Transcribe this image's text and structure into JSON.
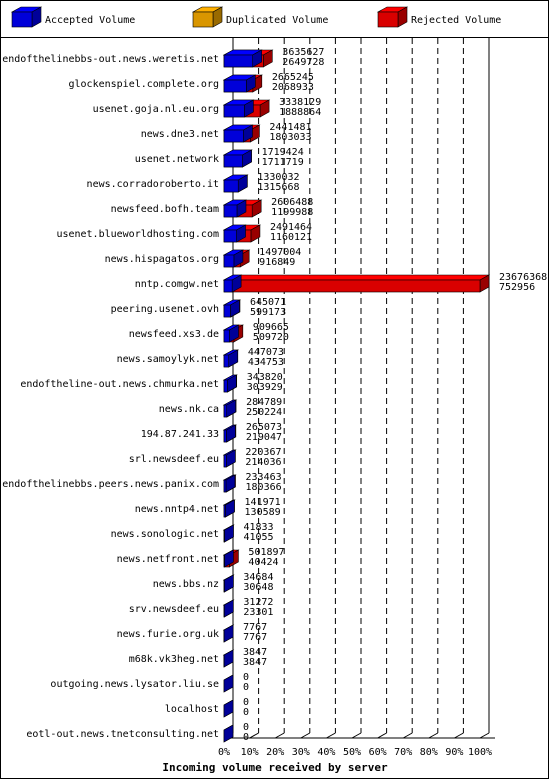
{
  "chart_data": {
    "type": "bar3d",
    "legend": [
      {
        "name": "Accepted Volume",
        "color": "#0000ff"
      },
      {
        "name": "Duplicated Volume",
        "color": "#ffb000"
      },
      {
        "name": "Rejected Volume",
        "color": "#ff0000"
      }
    ],
    "x_label": "Incoming volume received by server",
    "categories": [
      "endofthelinebbs-out.news.weretis.net",
      "glockenspiel.complete.org",
      "usenet.goja.nl.eu.org",
      "news.dne3.net",
      "usenet.network",
      "news.corradoroberto.it",
      "newsfeed.bofh.team",
      "usenet.blueworldhosting.com",
      "news.hispagatos.org",
      "nntp.comgw.net",
      "peering.usenet.ovh",
      "newsfeed.xs3.de",
      "news.samoylyk.net",
      "endoftheline-out.news.chmurka.net",
      "news.nk.ca",
      "194.87.241.33",
      "srl.newsdeef.eu",
      "endofthelinebbs.peers.news.panix.com",
      "news.nntp4.net",
      "news.sonologic.net",
      "news.netfront.net",
      "news.bbs.nz",
      "srv.newsdeef.eu",
      "news.furie.org.uk",
      "m68k.vk3heg.net",
      "outgoing.news.lysator.liu.se",
      "localhost",
      "eotl-out.news.tnetconsulting.net"
    ],
    "totals": [
      3635627,
      2665245,
      3338129,
      2441481,
      1719424,
      1330032,
      2606488,
      2491464,
      1497004,
      23676368,
      645071,
      909665,
      447073,
      343820,
      284789,
      265073,
      220367,
      233463,
      141971,
      41833,
      501897,
      34684,
      31272,
      7767,
      3847,
      0,
      0,
      0
    ],
    "accepted": [
      2649728,
      2068933,
      1888864,
      1803033,
      1711719,
      1315668,
      1199988,
      1160121,
      916849,
      752956,
      599173,
      509720,
      434753,
      303929,
      250224,
      219047,
      214036,
      180366,
      130589,
      41055,
      40424,
      30648,
      23301,
      7767,
      3847,
      0,
      0,
      0
    ],
    "xlim": [
      0,
      100
    ],
    "xticks": [
      {
        "value": 0,
        "label": "0%"
      },
      {
        "value": 10,
        "label": "10%"
      },
      {
        "value": 20,
        "label": "20%"
      },
      {
        "value": 30,
        "label": "30%"
      },
      {
        "value": 40,
        "label": "40%"
      },
      {
        "value": 50,
        "label": "50%"
      },
      {
        "value": 60,
        "label": "60%"
      },
      {
        "value": 70,
        "label": "70%"
      },
      {
        "value": 80,
        "label": "80%"
      },
      {
        "value": 90,
        "label": "90%"
      },
      {
        "value": 100,
        "label": "100%"
      }
    ],
    "grid": true
  }
}
